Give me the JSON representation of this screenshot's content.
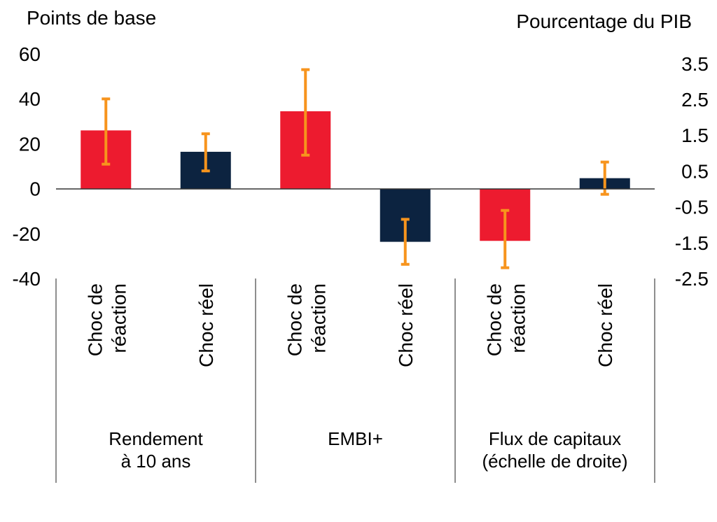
{
  "chart_data": {
    "type": "bar",
    "ylabel_left": "Points de base",
    "ylabel_right": "Pourcentage du PIB",
    "y_left_ticks": [
      "60",
      "40",
      "20",
      "0",
      "-20",
      "-40"
    ],
    "y_right_ticks": [
      "3.5",
      "2.5",
      "1.5",
      "0.5",
      "-0.5",
      "-1.5",
      "-2.5"
    ],
    "ylim_left": [
      -40,
      60
    ],
    "ylim_right": [
      -2.5,
      4.167
    ],
    "groups": [
      {
        "label_lines": [
          "Rendement",
          "à 10 ans"
        ]
      },
      {
        "label_lines": [
          "EMBI+"
        ]
      },
      {
        "label_lines": [
          "Flux de capitaux",
          "(échelle de droite)"
        ]
      }
    ],
    "bars": [
      {
        "group": 0,
        "category_lines": [
          "Choc de",
          "réaction"
        ],
        "axis": "left",
        "value": 26,
        "err_low": 11,
        "err_high": 40,
        "color": "#ed1b2f"
      },
      {
        "group": 0,
        "category_lines": [
          "Choc réel"
        ],
        "axis": "left",
        "value": 16.5,
        "err_low": 8,
        "err_high": 24.5,
        "color": "#0c2340"
      },
      {
        "group": 1,
        "category_lines": [
          "Choc de",
          "réaction"
        ],
        "axis": "left",
        "value": 34.5,
        "err_low": 15,
        "err_high": 53,
        "color": "#ed1b2f"
      },
      {
        "group": 1,
        "category_lines": [
          "Choc réel"
        ],
        "axis": "left",
        "value": -23.5,
        "err_low": -33.5,
        "err_high": -13.5,
        "color": "#0c2340"
      },
      {
        "group": 2,
        "category_lines": [
          "Choc de",
          "réaction"
        ],
        "axis": "right",
        "value": -1.45,
        "err_low": -2.2,
        "err_high": -0.6,
        "color": "#ed1b2f"
      },
      {
        "group": 2,
        "category_lines": [
          "Choc réel"
        ],
        "axis": "right",
        "value": 0.3,
        "err_low": -0.15,
        "err_high": 0.75,
        "color": "#0c2340"
      }
    ],
    "error_bar_color": "#f7941d",
    "legend": "none",
    "grid": false
  }
}
